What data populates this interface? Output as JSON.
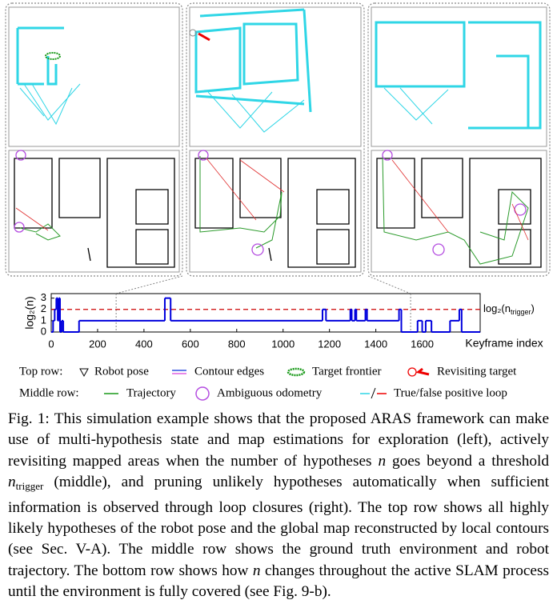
{
  "chart_data": {
    "type": "line",
    "step": "post",
    "x": [
      0,
      8,
      15,
      22,
      28,
      33,
      38,
      45,
      52,
      120,
      490,
      515,
      1170,
      1185,
      1290,
      1296,
      1310,
      1316,
      1355,
      1362,
      1500,
      1510,
      1580,
      1600,
      1615,
      1640,
      1720,
      1760,
      1770
    ],
    "values": [
      0,
      1,
      2,
      3,
      1,
      3,
      0,
      1,
      0,
      1,
      3,
      1,
      2,
      1,
      2,
      1,
      2,
      1,
      2,
      1,
      2,
      0,
      1,
      0,
      1,
      0,
      1,
      2,
      0
    ],
    "color": "#0000dd",
    "xlim": [
      0,
      1850
    ],
    "ylim": [
      0,
      3.4
    ],
    "xticks": [
      0,
      200,
      400,
      600,
      800,
      1000,
      1200,
      1400,
      1600
    ],
    "yticks": [
      0,
      1,
      2,
      3
    ],
    "xlabel": "Keyframe index",
    "ylabel": "log₂(n)",
    "threshold": {
      "value": 2,
      "color": "#cc0000",
      "label": [
        "log₂(n",
        "trigger",
        ")"
      ]
    },
    "markers": [
      280,
      1550
    ]
  },
  "legend": {
    "rows": [
      {
        "title": "Top row:",
        "items": [
          "Robot pose",
          "Contour edges",
          "Target frontier",
          "Revisiting target"
        ]
      },
      {
        "title": "Middle row:",
        "items": [
          "Trajectory",
          "Ambiguous odometry",
          "True/false positive loop"
        ]
      }
    ]
  },
  "caption": [
    {
      "text": "Fig. 1: This simulation example shows that the proposed ARAS framework can make use of multi-hypothesis state and map estimations for exploration (left), actively revisiting mapped areas when the number of hypotheses "
    },
    {
      "text": "n",
      "style": "italic"
    },
    {
      "text": " goes beyond a threshold "
    },
    {
      "text": "n",
      "style": "italic"
    },
    {
      "text": "trigger",
      "style": "sub"
    },
    {
      "text": " (middle), and pruning unlikely hypotheses automatically when sufficient information is observed through loop closures (right). The top row shows all highly likely hypotheses of the robot pose and the global map reconstructed by local contours (see Sec. V-A). The middle row shows the ground truth environment and robot trajectory. The bottom row shows how "
    },
    {
      "text": "n",
      "style": "italic"
    },
    {
      "text": " changes throughout the active SLAM process until the environment is fully covered (see Fig. 9-b)."
    }
  ]
}
